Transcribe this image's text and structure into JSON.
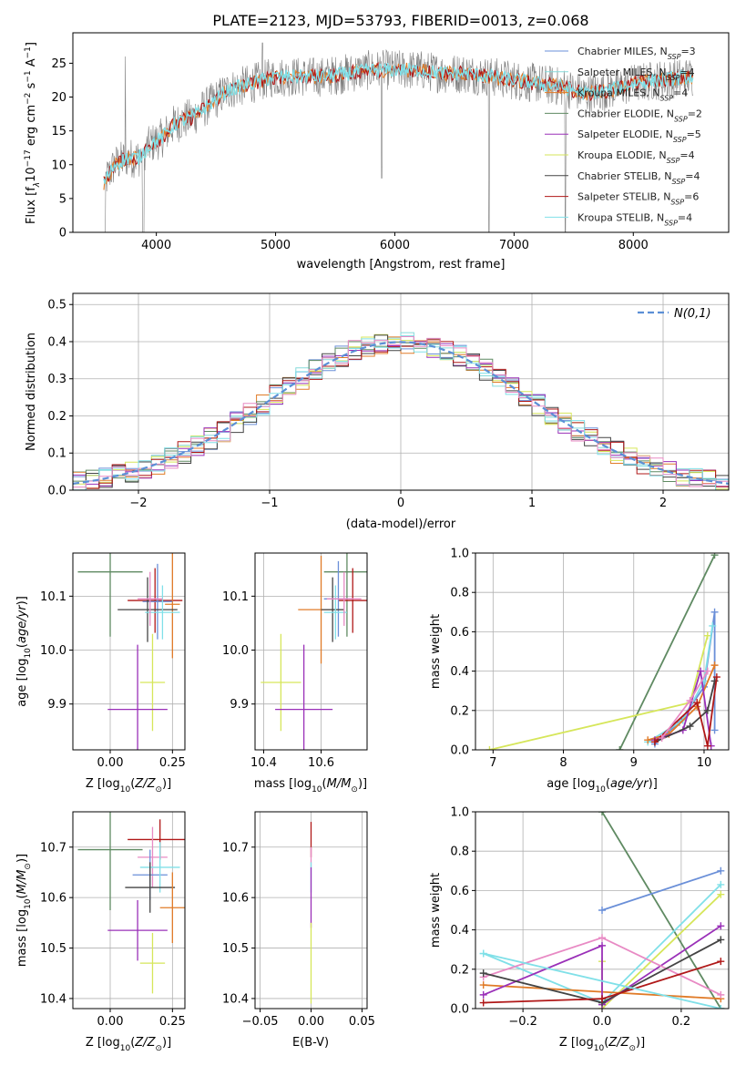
{
  "title": "PLATE=2123, MJD=53793, FIBERID=0013, z=0.068",
  "colors": {
    "Chabrier MILES": "#6a8fd8",
    "Salpeter MILES": "#86dada",
    "Kroupa MILES": "#e07b28",
    "Chabrier ELODIE": "#5f8a62",
    "Salpeter ELODIE": "#9a30b8",
    "Kroupa ELODIE": "#d6e65a",
    "Chabrier STELIB": "#444444",
    "Salpeter STELIB": "#b01818",
    "Kroupa STELIB": "#80e0e8",
    "pink": "#e88ac4"
  },
  "chart_data": [
    {
      "id": "spectrum",
      "type": "line",
      "xlabel": "wavelength [Angstrom, rest frame]",
      "ylabel": "Flux [f_λ 10^-17 erg cm^-2 s^-1 A^-1]",
      "ylabel_text": "Flux [f",
      "ylabel_pre": "λ",
      "ylabel_mid": "10",
      "ylabel_exp1": "−17",
      "ylabel_mid2": " erg cm",
      "ylabel_exp2": "−2",
      "ylabel_mid3": " s",
      "ylabel_exp3": "−1",
      "ylabel_end": " A",
      "ylabel_exp4": "−1",
      "ylabel_close": "]",
      "xlim": [
        3300,
        8800
      ],
      "ylim": [
        0,
        29.5
      ],
      "xticks": [
        "4000",
        "5000",
        "6000",
        "7000",
        "8000"
      ],
      "yticks": [
        "0",
        "5",
        "10",
        "15",
        "20",
        "25"
      ],
      "legend": [
        {
          "name": "Chabrier MILES, N",
          "sub": "SSP",
          "tail": "=3"
        },
        {
          "name": "Salpeter MILES, N",
          "sub": "SSP",
          "tail": "=4"
        },
        {
          "name": "Kroupa MILES, N",
          "sub": "SSP",
          "tail": "=4"
        },
        {
          "name": "Chabrier ELODIE, N",
          "sub": "SSP",
          "tail": "=2"
        },
        {
          "name": "Salpeter ELODIE, N",
          "sub": "SSP",
          "tail": "=5"
        },
        {
          "name": "Kroupa ELODIE, N",
          "sub": "SSP",
          "tail": "=4"
        },
        {
          "name": "Chabrier STELIB, N",
          "sub": "SSP",
          "tail": "=4"
        },
        {
          "name": "Salpeter STELIB, N",
          "sub": "SSP",
          "tail": "=6"
        },
        {
          "name": "Kroupa STELIB, N",
          "sub": "SSP",
          "tail": "=4"
        }
      ],
      "continuum": [
        [
          3550,
          7
        ],
        [
          3650,
          10
        ],
        [
          3750,
          11
        ],
        [
          3850,
          11
        ],
        [
          3950,
          13
        ],
        [
          4050,
          14
        ],
        [
          4150,
          16
        ],
        [
          4300,
          17
        ],
        [
          4450,
          19
        ],
        [
          4600,
          21
        ],
        [
          4800,
          22
        ],
        [
          5000,
          23
        ],
        [
          5200,
          23
        ],
        [
          5400,
          23
        ],
        [
          5600,
          23.5
        ],
        [
          5800,
          24
        ],
        [
          6000,
          24
        ],
        [
          6200,
          24
        ],
        [
          6400,
          23.5
        ],
        [
          6600,
          23.5
        ],
        [
          6800,
          23
        ],
        [
          7000,
          22.5
        ],
        [
          7200,
          22
        ],
        [
          7400,
          21.5
        ],
        [
          7600,
          20.5
        ],
        [
          7800,
          21
        ],
        [
          8000,
          22
        ],
        [
          8200,
          22.5
        ],
        [
          8500,
          23
        ]
      ]
    },
    {
      "id": "residuals",
      "type": "line",
      "xlabel": "(data-model)/error",
      "ylabel": "Normed distribution",
      "legend_label": "N(0,1)",
      "xlim": [
        -2.5,
        2.5
      ],
      "ylim": [
        0,
        0.53
      ],
      "xticks": [
        "−2",
        "−1",
        "0",
        "1",
        "2"
      ],
      "yticks": [
        "0.0",
        "0.1",
        "0.2",
        "0.3",
        "0.4",
        "0.5"
      ]
    },
    {
      "id": "age_vs_Z",
      "type": "scatter",
      "xlabel": "Z [log10(Z/Z⊙)]",
      "ylabel": "age [log10(age/yr)]",
      "xlim": [
        -0.15,
        0.3
      ],
      "ylim": [
        9.815,
        10.18
      ],
      "xticks": [
        "0.00",
        "0.25"
      ],
      "yticks": [
        "9.9",
        "10.0",
        "10.1"
      ],
      "points": [
        {
          "series": "Chabrier ELODIE",
          "x": 0.0,
          "y": 10.145,
          "xerr": 0.13,
          "yerr": 0.12
        },
        {
          "series": "Salpeter STELIB",
          "x": 0.18,
          "y": 10.092,
          "xerr": 0.11,
          "yerr": 0.06
        },
        {
          "series": "Kroupa MILES",
          "x": 0.25,
          "y": 10.085,
          "xerr": 0.03,
          "yerr": 0.1
        },
        {
          "series": "Chabrier MILES",
          "x": 0.19,
          "y": 10.09,
          "xerr": 0.06,
          "yerr": 0.07
        },
        {
          "series": "Chabrier STELIB",
          "x": 0.15,
          "y": 10.075,
          "xerr": 0.12,
          "yerr": 0.06
        },
        {
          "series": "Kroupa STELIB",
          "x": 0.21,
          "y": 10.07,
          "xerr": 0.07,
          "yerr": 0.05
        },
        {
          "series": "Kroupa ELODIE",
          "x": 0.17,
          "y": 9.94,
          "xerr": 0.05,
          "yerr": 0.09
        },
        {
          "series": "Salpeter ELODIE",
          "x": 0.11,
          "y": 9.89,
          "xerr": 0.12,
          "yerr": 0.12
        },
        {
          "series": "pink",
          "x": 0.16,
          "y": 10.095,
          "xerr": 0.05,
          "yerr": 0.05
        }
      ]
    },
    {
      "id": "age_vs_mass",
      "type": "scatter",
      "xlabel": "mass [log10(M/M⊙)]",
      "xlim": [
        10.37,
        10.76
      ],
      "ylim": [
        9.815,
        10.18
      ],
      "xticks": [
        "10.4",
        "10.6"
      ],
      "yticks": [
        "9.9",
        "10.0",
        "10.1"
      ],
      "points": [
        {
          "series": "Chabrier ELODIE",
          "x": 10.69,
          "y": 10.145,
          "xerr": 0.08,
          "yerr": 0.12
        },
        {
          "series": "Salpeter STELIB",
          "x": 10.71,
          "y": 10.092,
          "xerr": 0.05,
          "yerr": 0.06
        },
        {
          "series": "Kroupa MILES",
          "x": 10.6,
          "y": 10.075,
          "xerr": 0.08,
          "yerr": 0.1
        },
        {
          "series": "Chabrier MILES",
          "x": 10.66,
          "y": 10.095,
          "xerr": 0.05,
          "yerr": 0.07
        },
        {
          "series": "Chabrier STELIB",
          "x": 10.64,
          "y": 10.075,
          "xerr": 0.04,
          "yerr": 0.06
        },
        {
          "series": "Kroupa STELIB",
          "x": 10.65,
          "y": 10.07,
          "xerr": 0.04,
          "yerr": 0.05
        },
        {
          "series": "Kroupa ELODIE",
          "x": 10.46,
          "y": 9.94,
          "xerr": 0.07,
          "yerr": 0.09
        },
        {
          "series": "Salpeter ELODIE",
          "x": 10.54,
          "y": 9.89,
          "xerr": 0.1,
          "yerr": 0.12
        },
        {
          "series": "pink",
          "x": 10.68,
          "y": 10.095,
          "xerr": 0.06,
          "yerr": 0.05
        }
      ]
    },
    {
      "id": "weight_vs_age",
      "type": "line",
      "xlabel": "age [log10(age/yr)]",
      "ylabel": "mass weight",
      "xlim": [
        6.75,
        10.35
      ],
      "ylim": [
        0,
        1
      ],
      "xticks": [
        "7",
        "8",
        "9",
        "10"
      ],
      "yticks": [
        "0.0",
        "0.2",
        "0.4",
        "0.6",
        "0.8",
        "1.0"
      ],
      "series": [
        {
          "name": "Chabrier ELODIE",
          "x": [
            8.8,
            10.15
          ],
          "y": [
            0.0,
            0.99
          ]
        },
        {
          "name": "Kroupa ELODIE",
          "x": [
            6.95,
            9.8,
            10.05
          ],
          "y": [
            0.0,
            0.24,
            0.58
          ]
        },
        {
          "name": "Chabrier MILES",
          "x": [
            9.3,
            9.65,
            10.0,
            10.15,
            10.15
          ],
          "y": [
            0.03,
            0.14,
            0.32,
            0.7,
            0.1
          ]
        },
        {
          "name": "Kroupa STELIB",
          "x": [
            9.2,
            9.7,
            10.0,
            10.12
          ],
          "y": [
            0.04,
            0.15,
            0.35,
            0.63
          ]
        },
        {
          "name": "Kroupa MILES",
          "x": [
            9.2,
            9.5,
            9.9,
            10.15
          ],
          "y": [
            0.05,
            0.08,
            0.22,
            0.43
          ]
        },
        {
          "name": "Salpeter ELODIE",
          "x": [
            9.3,
            9.7,
            9.95,
            10.1
          ],
          "y": [
            0.05,
            0.1,
            0.4,
            0.02
          ]
        },
        {
          "name": "Chabrier STELIB",
          "x": [
            9.3,
            9.8,
            10.05,
            10.15
          ],
          "y": [
            0.04,
            0.12,
            0.2,
            0.35
          ]
        },
        {
          "name": "Salpeter STELIB",
          "x": [
            9.3,
            9.9,
            10.05,
            10.18
          ],
          "y": [
            0.04,
            0.24,
            0.02,
            0.37
          ]
        },
        {
          "name": "pink",
          "x": [
            9.4,
            9.8,
            10.05
          ],
          "y": [
            0.06,
            0.25,
            0.4
          ]
        }
      ]
    },
    {
      "id": "mass_vs_Z",
      "type": "scatter",
      "xlabel": "Z [log10(Z/Z⊙)]",
      "ylabel": "mass [log10(M/M⊙)]",
      "xlim": [
        -0.15,
        0.3
      ],
      "ylim": [
        10.38,
        10.77
      ],
      "xticks": [
        "0.00",
        "0.25"
      ],
      "yticks": [
        "10.4",
        "10.5",
        "10.6",
        "10.7"
      ],
      "points": [
        {
          "series": "Chabrier ELODIE",
          "x": 0.0,
          "y": 10.695,
          "xerr": 0.13,
          "yerr": 0.12
        },
        {
          "series": "Salpeter STELIB",
          "x": 0.2,
          "y": 10.715,
          "xerr": 0.13,
          "yerr": 0.04
        },
        {
          "series": "pink",
          "x": 0.17,
          "y": 10.68,
          "xerr": 0.06,
          "yerr": 0.06
        },
        {
          "series": "Chabrier MILES",
          "x": 0.16,
          "y": 10.645,
          "xerr": 0.07,
          "yerr": 0.05
        },
        {
          "series": "Kroupa STELIB",
          "x": 0.2,
          "y": 10.66,
          "xerr": 0.08,
          "yerr": 0.05
        },
        {
          "series": "Chabrier STELIB",
          "x": 0.16,
          "y": 10.62,
          "xerr": 0.1,
          "yerr": 0.05
        },
        {
          "series": "Kroupa MILES",
          "x": 0.25,
          "y": 10.58,
          "xerr": 0.05,
          "yerr": 0.07
        },
        {
          "series": "Salpeter ELODIE",
          "x": 0.11,
          "y": 10.535,
          "xerr": 0.12,
          "yerr": 0.06
        },
        {
          "series": "Kroupa ELODIE",
          "x": 0.17,
          "y": 10.47,
          "xerr": 0.05,
          "yerr": 0.06
        }
      ]
    },
    {
      "id": "mass_vs_ebv",
      "type": "scatter",
      "xlabel": "E(B-V)",
      "xlim": [
        -0.055,
        0.055
      ],
      "ylim": [
        10.38,
        10.77
      ],
      "xticks": [
        "−0.05",
        "0.00",
        "0.05"
      ],
      "yticks": [
        "10.4",
        "10.5",
        "10.6",
        "10.7"
      ],
      "points": [
        {
          "series": "Salpeter STELIB",
          "x": 0.0,
          "y": 10.715,
          "xerr": 0.0,
          "yerr": 0.035
        },
        {
          "series": "pink",
          "x": 0.0,
          "y": 10.68,
          "xerr": 0.0,
          "yerr": 0.02
        },
        {
          "series": "Kroupa STELIB",
          "x": 0.0,
          "y": 10.64,
          "xerr": 0.0,
          "yerr": 0.03
        },
        {
          "series": "Salpeter ELODIE",
          "x": 0.0,
          "y": 10.6,
          "xerr": 0.0,
          "yerr": 0.06
        },
        {
          "series": "Kroupa ELODIE",
          "x": 0.0,
          "y": 10.47,
          "xerr": 0.0,
          "yerr": 0.08
        }
      ]
    },
    {
      "id": "weight_vs_Z",
      "type": "line",
      "xlabel": "Z [log10(Z/Z⊙)]",
      "ylabel": "mass weight",
      "xlim": [
        -0.32,
        0.32
      ],
      "ylim": [
        0,
        1
      ],
      "xticks": [
        "−0.2",
        "0.0",
        "0.2"
      ],
      "yticks": [
        "0.0",
        "0.2",
        "0.4",
        "0.6",
        "0.8",
        "1.0"
      ],
      "series": [
        {
          "name": "Chabrier ELODIE",
          "x": [
            0.0,
            0.3
          ],
          "y": [
            1.0,
            0.0
          ]
        },
        {
          "name": "Chabrier MILES",
          "x": [
            0.0,
            0.3
          ],
          "y": [
            0.5,
            0.7
          ]
        },
        {
          "name": "Kroupa STELIB",
          "x": [
            -0.3,
            0.0,
            0.3
          ],
          "y": [
            0.28,
            0.03,
            0.63
          ]
        },
        {
          "name": "Kroupa ELODIE",
          "x": [
            0.0,
            0.0,
            0.3
          ],
          "y": [
            0.24,
            0.0,
            0.58
          ]
        },
        {
          "name": "Kroupa MILES",
          "x": [
            -0.3,
            0.3
          ],
          "y": [
            0.12,
            0.05
          ]
        },
        {
          "name": "Salpeter ELODIE",
          "x": [
            -0.3,
            0.0,
            0.0,
            0.3
          ],
          "y": [
            0.07,
            0.32,
            0.02,
            0.42
          ]
        },
        {
          "name": "pink",
          "x": [
            -0.3,
            0.0,
            0.3
          ],
          "y": [
            0.16,
            0.36,
            0.07
          ]
        },
        {
          "name": "Chabrier STELIB",
          "x": [
            -0.3,
            0.0,
            0.3
          ],
          "y": [
            0.18,
            0.03,
            0.35
          ]
        },
        {
          "name": "Salpeter STELIB",
          "x": [
            -0.3,
            0.0,
            0.3
          ],
          "y": [
            0.03,
            0.05,
            0.24
          ]
        },
        {
          "name": "Kroupa STELIB",
          "x": [
            -0.3,
            0.3
          ],
          "y": [
            0.28,
            0.0
          ]
        }
      ]
    }
  ]
}
